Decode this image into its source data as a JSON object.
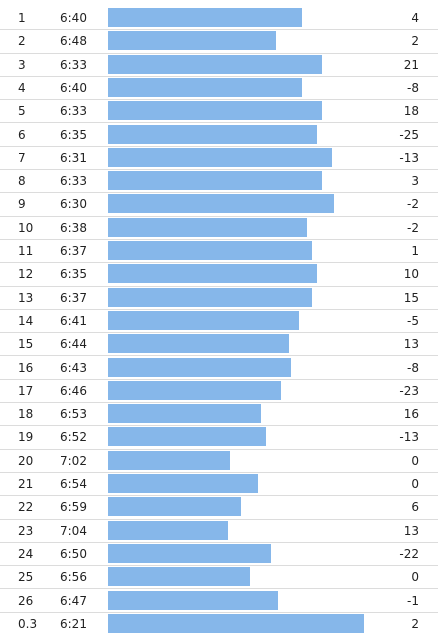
{
  "splits": [
    {
      "split": "1",
      "pace": "6:40",
      "elevation": "4",
      "bar_fraction": 0.756
    },
    {
      "split": "2",
      "pace": "6:48",
      "elevation": "2",
      "bar_fraction": 0.656
    },
    {
      "split": "3",
      "pace": "6:33",
      "elevation": "21",
      "bar_fraction": 0.836
    },
    {
      "split": "4",
      "pace": "6:40",
      "elevation": "-8",
      "bar_fraction": 0.756
    },
    {
      "split": "5",
      "pace": "6:33",
      "elevation": "18",
      "bar_fraction": 0.836
    },
    {
      "split": "6",
      "pace": "6:35",
      "elevation": "-25",
      "bar_fraction": 0.816
    },
    {
      "split": "7",
      "pace": "6:31",
      "elevation": "-13",
      "bar_fraction": 0.875
    },
    {
      "split": "8",
      "pace": "6:33",
      "elevation": "3",
      "bar_fraction": 0.836
    },
    {
      "split": "9",
      "pace": "6:30",
      "elevation": "-2",
      "bar_fraction": 0.883
    },
    {
      "split": "10",
      "pace": "6:38",
      "elevation": "-2",
      "bar_fraction": 0.777
    },
    {
      "split": "11",
      "pace": "6:37",
      "elevation": "1",
      "bar_fraction": 0.797
    },
    {
      "split": "12",
      "pace": "6:35",
      "elevation": "10",
      "bar_fraction": 0.816
    },
    {
      "split": "13",
      "pace": "6:37",
      "elevation": "15",
      "bar_fraction": 0.797
    },
    {
      "split": "14",
      "pace": "6:41",
      "elevation": "-5",
      "bar_fraction": 0.746
    },
    {
      "split": "15",
      "pace": "6:44",
      "elevation": "13",
      "bar_fraction": 0.707
    },
    {
      "split": "16",
      "pace": "6:43",
      "elevation": "-8",
      "bar_fraction": 0.715
    },
    {
      "split": "17",
      "pace": "6:46",
      "elevation": "-23",
      "bar_fraction": 0.676
    },
    {
      "split": "18",
      "pace": "6:53",
      "elevation": "16",
      "bar_fraction": 0.598
    },
    {
      "split": "19",
      "pace": "6:52",
      "elevation": "-13",
      "bar_fraction": 0.617
    },
    {
      "split": "20",
      "pace": "7:02",
      "elevation": "0",
      "bar_fraction": 0.477
    },
    {
      "split": "21",
      "pace": "6:54",
      "elevation": "0",
      "bar_fraction": 0.586
    },
    {
      "split": "22",
      "pace": "6:59",
      "elevation": "6",
      "bar_fraction": 0.52
    },
    {
      "split": "23",
      "pace": "7:04",
      "elevation": "13",
      "bar_fraction": 0.469
    },
    {
      "split": "24",
      "pace": "6:50",
      "elevation": "-22",
      "bar_fraction": 0.637
    },
    {
      "split": "25",
      "pace": "6:56",
      "elevation": "0",
      "bar_fraction": 0.555
    },
    {
      "split": "26",
      "pace": "6:47",
      "elevation": "-1",
      "bar_fraction": 0.664
    },
    {
      "split": "0.3",
      "pace": "6:21",
      "elevation": "2",
      "bar_fraction": 1.0
    }
  ],
  "colors": {
    "bar": "#86b7ea",
    "divider": "#dcdcdc",
    "text": "#222222"
  }
}
